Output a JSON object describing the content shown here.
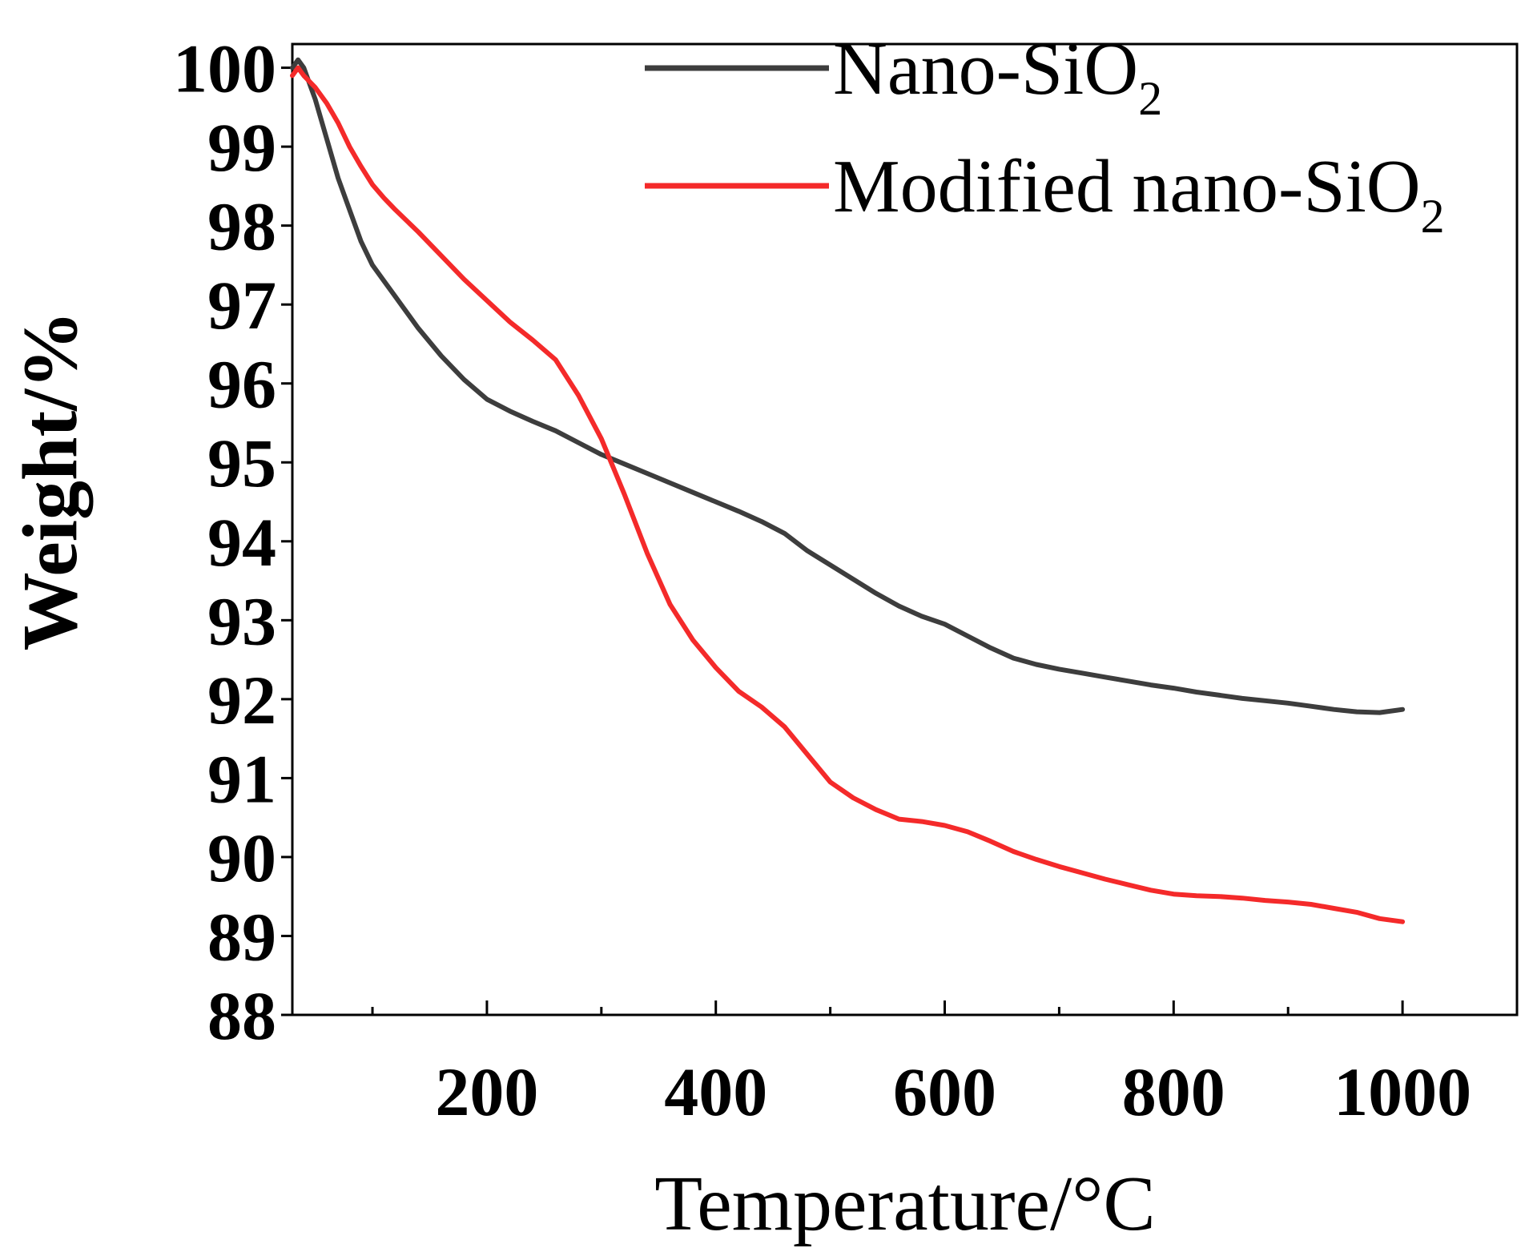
{
  "chart_data": {
    "type": "line",
    "xlabel": "Temperature/°C",
    "ylabel": "Weight/%",
    "xlim": [
      30,
      1100
    ],
    "ylim": [
      88,
      100.3
    ],
    "x_ticks": [
      200,
      400,
      600,
      800,
      1000
    ],
    "x_minor_ticks": [
      100,
      300,
      500,
      700,
      900
    ],
    "y_ticks": [
      88,
      89,
      90,
      91,
      92,
      93,
      94,
      95,
      96,
      97,
      98,
      99,
      100
    ],
    "legend": {
      "position": "top-right"
    },
    "series": [
      {
        "name": "Nano-SiO",
        "subscript": "2",
        "color": "#3d3d3d",
        "x": [
          30,
          35,
          40,
          50,
          60,
          70,
          80,
          90,
          100,
          110,
          120,
          140,
          160,
          180,
          200,
          220,
          240,
          260,
          280,
          300,
          320,
          340,
          360,
          380,
          400,
          420,
          440,
          460,
          480,
          500,
          520,
          540,
          560,
          580,
          600,
          620,
          640,
          660,
          680,
          700,
          720,
          740,
          760,
          780,
          800,
          820,
          840,
          860,
          880,
          900,
          920,
          940,
          960,
          980,
          1000
        ],
        "y": [
          100.0,
          100.1,
          100.0,
          99.6,
          99.1,
          98.6,
          98.2,
          97.8,
          97.5,
          97.3,
          97.1,
          96.7,
          96.35,
          96.05,
          95.8,
          95.65,
          95.52,
          95.4,
          95.25,
          95.1,
          94.98,
          94.86,
          94.74,
          94.62,
          94.5,
          94.38,
          94.25,
          94.1,
          93.88,
          93.7,
          93.52,
          93.34,
          93.18,
          93.05,
          92.95,
          92.8,
          92.65,
          92.52,
          92.44,
          92.38,
          92.33,
          92.28,
          92.23,
          92.18,
          92.14,
          92.09,
          92.05,
          92.01,
          91.98,
          91.95,
          91.91,
          91.87,
          91.84,
          91.83,
          91.87
        ]
      },
      {
        "name": "Modified nano-SiO",
        "subscript": "2",
        "color": "#f42a2a",
        "x": [
          30,
          35,
          40,
          50,
          60,
          70,
          80,
          90,
          100,
          110,
          120,
          140,
          160,
          180,
          200,
          220,
          240,
          260,
          280,
          300,
          320,
          340,
          360,
          380,
          400,
          420,
          440,
          460,
          480,
          500,
          520,
          540,
          560,
          580,
          600,
          620,
          640,
          660,
          680,
          700,
          720,
          740,
          760,
          780,
          800,
          820,
          840,
          860,
          880,
          900,
          920,
          940,
          960,
          980,
          1000
        ],
        "y": [
          99.9,
          100.0,
          99.9,
          99.75,
          99.55,
          99.3,
          99.0,
          98.75,
          98.52,
          98.35,
          98.2,
          97.92,
          97.62,
          97.32,
          97.05,
          96.78,
          96.55,
          96.3,
          95.85,
          95.3,
          94.6,
          93.85,
          93.2,
          92.75,
          92.4,
          92.1,
          91.9,
          91.65,
          91.3,
          90.95,
          90.75,
          90.6,
          90.48,
          90.45,
          90.4,
          90.32,
          90.2,
          90.07,
          89.97,
          89.88,
          89.8,
          89.72,
          89.65,
          89.58,
          89.53,
          89.51,
          89.5,
          89.48,
          89.45,
          89.43,
          89.4,
          89.35,
          89.3,
          89.22,
          89.18
        ]
      }
    ]
  }
}
